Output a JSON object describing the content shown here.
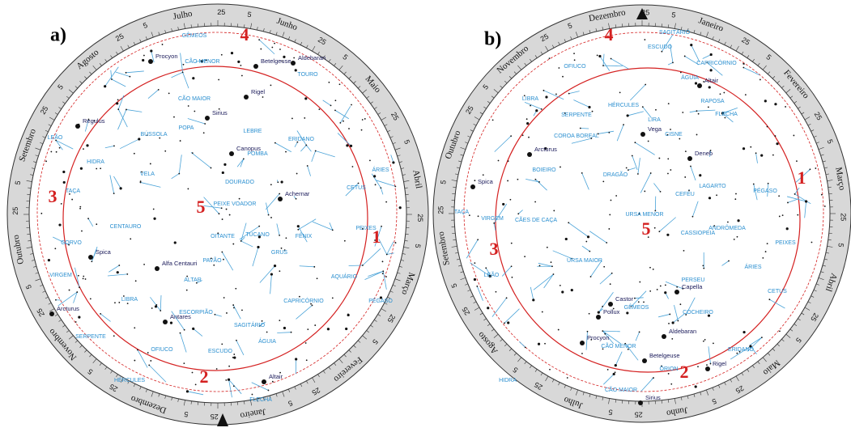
{
  "panels": [
    {
      "label": "a)",
      "months": [
        "Junho",
        "Maio",
        "Abril",
        "Março",
        "Fevereiro",
        "Janeiro",
        "Dezembro",
        "Novembro",
        "Outubro",
        "Setembro",
        "Agosto",
        "Julho"
      ],
      "days": [
        5,
        25
      ],
      "markers": [
        "1",
        "2",
        "3",
        "4",
        "5"
      ],
      "constellations": [
        "GÊMEOS",
        "CÃO MENOR",
        "TOURO",
        "CÃO MAIOR",
        "LEÃO",
        "BÚSSOLA",
        "POPA",
        "LEBRE",
        "POMBA",
        "ERIDANO",
        "HIDRA",
        "VELA",
        "DOURADO",
        "TAÇA",
        "PEIXE VOADOR",
        "CORVO",
        "FÊNIX",
        "CETUS",
        "PEIXES",
        "ÁRIES",
        "CENTAURO",
        "OITANTE",
        "TUCANO",
        "GRUS",
        "PAVÃO",
        "VIRGEM",
        "ALTAR",
        "ESCORPIÃO",
        "SAGITÁRIO",
        "CAPRICÓRNIO",
        "AQUÁRIO",
        "PÉGASO",
        "LIBRA",
        "OFIUCO",
        "ESCUDO",
        "ÁGUIA",
        "SERPENTE",
        "HÉRCULES",
        "FLECHA"
      ],
      "stars": [
        "Procyon",
        "Betelgeuse",
        "Aldebaran",
        "Rigel",
        "Sirius",
        "Regulus",
        "Canopus",
        "Achernar",
        "Spica",
        "Alfa Centauri",
        "Antares",
        "Arcturus",
        "Altair"
      ]
    },
    {
      "label": "b)",
      "months": [
        "Janeiro",
        "Fevereiro",
        "Março",
        "Abril",
        "Maio",
        "Junho",
        "Julho",
        "Agosto",
        "Setembro",
        "Outubro",
        "Novembro",
        "Dezembro"
      ],
      "days": [
        5,
        25
      ],
      "markers": [
        "1",
        "2",
        "3",
        "4",
        "5"
      ],
      "constellations": [
        "SAGITÁRIO",
        "ESCUDO",
        "CAPRICÓRNIO",
        "ÁGUIA",
        "OFIUCO",
        "LIBRA",
        "SERPENTE",
        "HÉRCULES",
        "RAPOSA",
        "FLECHA",
        "LIRA",
        "CISNE",
        "COROA BOREAL",
        "BOIEIRO",
        "DRAGÃO",
        "VIRGEM",
        "TAÇA",
        "CÃES DE CAÇA",
        "URSA MENOR",
        "CEFEU",
        "LAGARTO",
        "PÉGASO",
        "ANDRÔMEDA",
        "CASSIOPEIA",
        "URSA MAIOR",
        "PERSEU",
        "COCHEIRO",
        "GÊMEOS",
        "CÃO MENOR",
        "ÓRION",
        "CÃO MAIOR",
        "ERIDANO",
        "CETUS",
        "PEIXES",
        "ÁRIES",
        "LEÃO",
        "HIDRA"
      ],
      "stars": [
        "Altair",
        "Vega",
        "Deneb",
        "Arcturus",
        "Spica",
        "Capella",
        "Castor",
        "Pollux",
        "Aldebaran",
        "Procyon",
        "Betelgeuse",
        "Rigel",
        "Sirius"
      ]
    }
  ]
}
